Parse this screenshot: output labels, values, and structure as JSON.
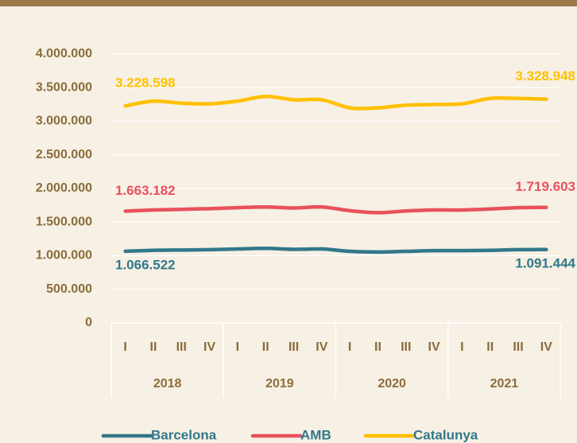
{
  "chart_data": {
    "type": "line",
    "categories": [
      "I",
      "II",
      "III",
      "IV",
      "I",
      "II",
      "III",
      "IV",
      "I",
      "II",
      "III",
      "IV",
      "I",
      "II",
      "III",
      "IV"
    ],
    "groups": [
      "2018",
      "2019",
      "2020",
      "2021"
    ],
    "ylim": [
      0,
      4000000
    ],
    "yticks": [
      0,
      {
        "value": 500000,
        "label": "500.000"
      },
      {
        "value": 1000000,
        "label": "1.000.000"
      },
      {
        "value": 1500000,
        "label": "1.500.000"
      },
      {
        "value": 2000000,
        "label": "2.000.000"
      },
      {
        "value": 2500000,
        "label": "2.500.000"
      },
      {
        "value": 3000000,
        "label": "3.000.000"
      },
      {
        "value": 3500000,
        "label": "3.500.000"
      },
      {
        "value": 4000000,
        "label": "4.000.000"
      }
    ],
    "grid": true,
    "legend": "bottom",
    "series": [
      {
        "name": "Barcelona",
        "color": "#31788a",
        "values": [
          1066522,
          1080000,
          1085000,
          1090000,
          1100000,
          1110000,
          1095000,
          1100000,
          1065000,
          1055000,
          1065000,
          1075000,
          1075000,
          1080000,
          1090000,
          1091444
        ],
        "value_labels": [
          "1.066.522",
          null,
          null,
          null,
          null,
          null,
          null,
          null,
          null,
          null,
          null,
          null,
          null,
          null,
          null,
          "1.091.444"
        ]
      },
      {
        "name": "AMB",
        "color": "#e8515c",
        "values": [
          1663182,
          1680000,
          1690000,
          1700000,
          1715000,
          1725000,
          1710000,
          1725000,
          1670000,
          1640000,
          1665000,
          1680000,
          1680000,
          1695000,
          1715000,
          1719603
        ],
        "value_labels": [
          "1.663.182",
          null,
          null,
          null,
          null,
          null,
          null,
          null,
          null,
          null,
          null,
          null,
          null,
          null,
          null,
          "1.719.603"
        ]
      },
      {
        "name": "Catalunya",
        "color": "#ffc000",
        "values": [
          3228598,
          3300000,
          3270000,
          3260000,
          3300000,
          3370000,
          3320000,
          3320000,
          3200000,
          3200000,
          3240000,
          3250000,
          3260000,
          3340000,
          3340000,
          3328948
        ],
        "value_labels": [
          "3.228.598",
          null,
          null,
          null,
          null,
          null,
          null,
          null,
          null,
          null,
          null,
          null,
          null,
          null,
          null,
          "3.328.948"
        ]
      }
    ]
  }
}
